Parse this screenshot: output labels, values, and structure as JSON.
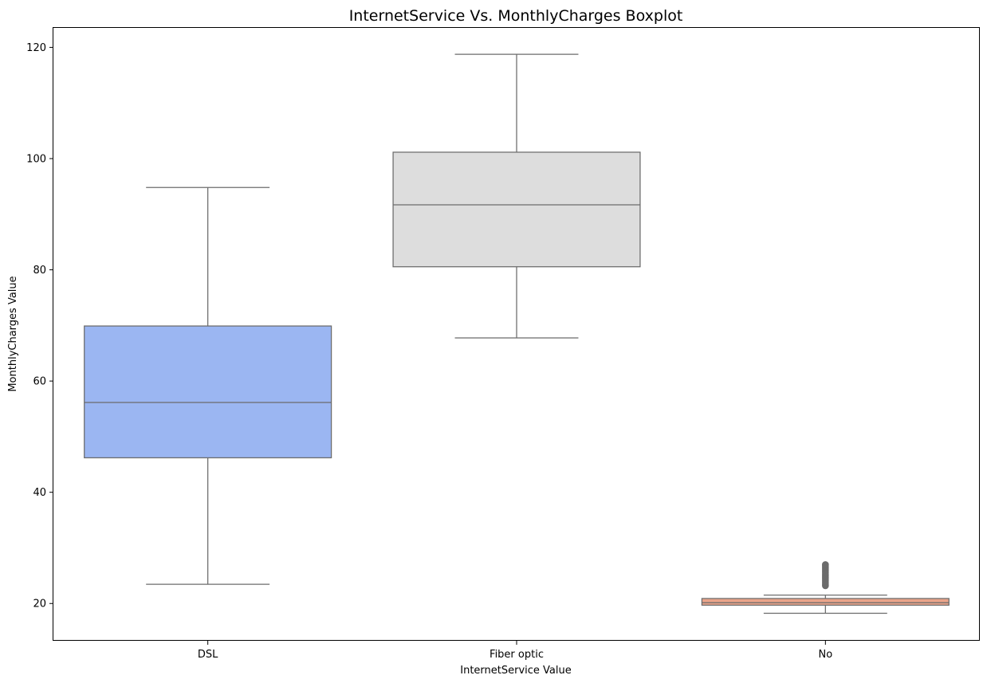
{
  "chart_data": {
    "type": "box",
    "title": "InternetService Vs. MonthlyCharges Boxplot",
    "xlabel": "InternetService Value",
    "ylabel": "MonthlyCharges Value",
    "ylim": [
      13.3,
      123.5
    ],
    "yticks": [
      20,
      40,
      60,
      80,
      100,
      120
    ],
    "grid": false,
    "categories": [
      "DSL",
      "Fiber optic",
      "No"
    ],
    "boxes": [
      {
        "category": "DSL",
        "whisker_low": 23.45,
        "q1": 46.2,
        "median": 56.15,
        "q3": 69.9,
        "whisker_high": 94.8,
        "outliers": [],
        "color": "#9bb6f2"
      },
      {
        "category": "Fiber optic",
        "whisker_low": 67.75,
        "q1": 80.55,
        "median": 91.68,
        "q3": 101.15,
        "whisker_high": 118.75,
        "outliers": [],
        "color": "#dddddd"
      },
      {
        "category": "No",
        "whisker_low": 18.25,
        "q1": 19.7,
        "median": 20.15,
        "q3": 20.9,
        "whisker_high": 21.5,
        "outliers": [
          23.2,
          23.5,
          23.8,
          24.1,
          24.4,
          24.7,
          25.0,
          25.3,
          25.6,
          25.9,
          26.2,
          26.5,
          26.8,
          27.0
        ],
        "color": "#eaa48a"
      }
    ],
    "line_color": "#6b6b6b"
  }
}
